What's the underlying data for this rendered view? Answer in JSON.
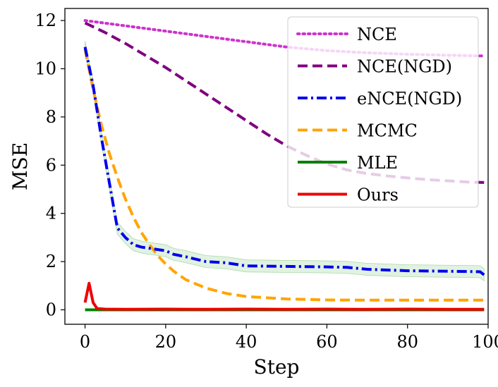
{
  "chart_data": {
    "type": "line",
    "title": "",
    "xlabel": "Step",
    "ylabel": "MSE",
    "xlim": [
      -5,
      100
    ],
    "ylim": [
      -0.6,
      12.5
    ],
    "xticks": [
      0,
      20,
      40,
      60,
      80,
      100
    ],
    "yticks": [
      0,
      2,
      4,
      6,
      8,
      10,
      12
    ],
    "grid": false,
    "legend_position": "top-right",
    "series": [
      {
        "name": "NCE",
        "color": "#cc33cc",
        "style": "dotted",
        "points": [
          [
            0,
            12.0
          ],
          [
            10,
            11.78
          ],
          [
            20,
            11.56
          ],
          [
            30,
            11.34
          ],
          [
            40,
            11.12
          ],
          [
            50,
            10.9
          ],
          [
            60,
            10.75
          ],
          [
            70,
            10.66
          ],
          [
            80,
            10.6
          ],
          [
            90,
            10.56
          ],
          [
            99,
            10.53
          ]
        ]
      },
      {
        "name": "NCE(NGD)",
        "color": "#800080",
        "style": "dashed",
        "points": [
          [
            0,
            11.9
          ],
          [
            5,
            11.5
          ],
          [
            10,
            11.05
          ],
          [
            15,
            10.55
          ],
          [
            20,
            10.05
          ],
          [
            25,
            9.5
          ],
          [
            30,
            8.95
          ],
          [
            35,
            8.4
          ],
          [
            40,
            7.85
          ],
          [
            45,
            7.3
          ],
          [
            50,
            6.8
          ],
          [
            55,
            6.4
          ],
          [
            60,
            6.05
          ],
          [
            65,
            5.8
          ],
          [
            70,
            5.65
          ],
          [
            75,
            5.55
          ],
          [
            80,
            5.47
          ],
          [
            85,
            5.4
          ],
          [
            90,
            5.35
          ],
          [
            95,
            5.3
          ],
          [
            99,
            5.28
          ]
        ]
      },
      {
        "name": "eNCE(NGD)",
        "color": "#0000ee",
        "style": "dashdot",
        "band": 0.25,
        "points": [
          [
            0,
            10.9
          ],
          [
            2,
            9.3
          ],
          [
            4,
            7.2
          ],
          [
            6,
            5.3
          ],
          [
            8,
            3.4
          ],
          [
            10,
            3.0
          ],
          [
            12,
            2.7
          ],
          [
            14,
            2.6
          ],
          [
            16,
            2.55
          ],
          [
            18,
            2.5
          ],
          [
            20,
            2.45
          ],
          [
            22,
            2.3
          ],
          [
            25,
            2.2
          ],
          [
            30,
            2.0
          ],
          [
            35,
            1.95
          ],
          [
            40,
            1.82
          ],
          [
            50,
            1.8
          ],
          [
            60,
            1.78
          ],
          [
            65,
            1.76
          ],
          [
            70,
            1.68
          ],
          [
            80,
            1.62
          ],
          [
            90,
            1.6
          ],
          [
            98,
            1.58
          ],
          [
            99,
            1.45
          ]
        ]
      },
      {
        "name": "MCMC",
        "color": "#ffa500",
        "style": "dashed",
        "points": [
          [
            0,
            10.8
          ],
          [
            2,
            9.15
          ],
          [
            4,
            7.7
          ],
          [
            6,
            6.5
          ],
          [
            8,
            5.5
          ],
          [
            10,
            4.6
          ],
          [
            12,
            3.85
          ],
          [
            14,
            3.2
          ],
          [
            16,
            2.7
          ],
          [
            18,
            2.25
          ],
          [
            20,
            1.9
          ],
          [
            22,
            1.6
          ],
          [
            25,
            1.25
          ],
          [
            30,
            0.9
          ],
          [
            35,
            0.68
          ],
          [
            40,
            0.55
          ],
          [
            50,
            0.45
          ],
          [
            60,
            0.41
          ],
          [
            70,
            0.4
          ],
          [
            80,
            0.4
          ],
          [
            90,
            0.4
          ],
          [
            99,
            0.4
          ]
        ]
      },
      {
        "name": "MLE",
        "color": "#008000",
        "style": "solid",
        "points": [
          [
            0,
            0.0
          ],
          [
            99,
            0.0
          ]
        ]
      },
      {
        "name": "Ours",
        "color": "#ee0000",
        "style": "solid",
        "points": [
          [
            0,
            0.3
          ],
          [
            1,
            1.1
          ],
          [
            2,
            0.3
          ],
          [
            3,
            0.05
          ],
          [
            5,
            0.03
          ],
          [
            10,
            0.02
          ],
          [
            20,
            0.03
          ],
          [
            30,
            0.02
          ],
          [
            40,
            0.03
          ],
          [
            50,
            0.02
          ],
          [
            60,
            0.03
          ],
          [
            70,
            0.02
          ],
          [
            80,
            0.03
          ],
          [
            90,
            0.02
          ],
          [
            99,
            0.02
          ]
        ]
      }
    ]
  }
}
